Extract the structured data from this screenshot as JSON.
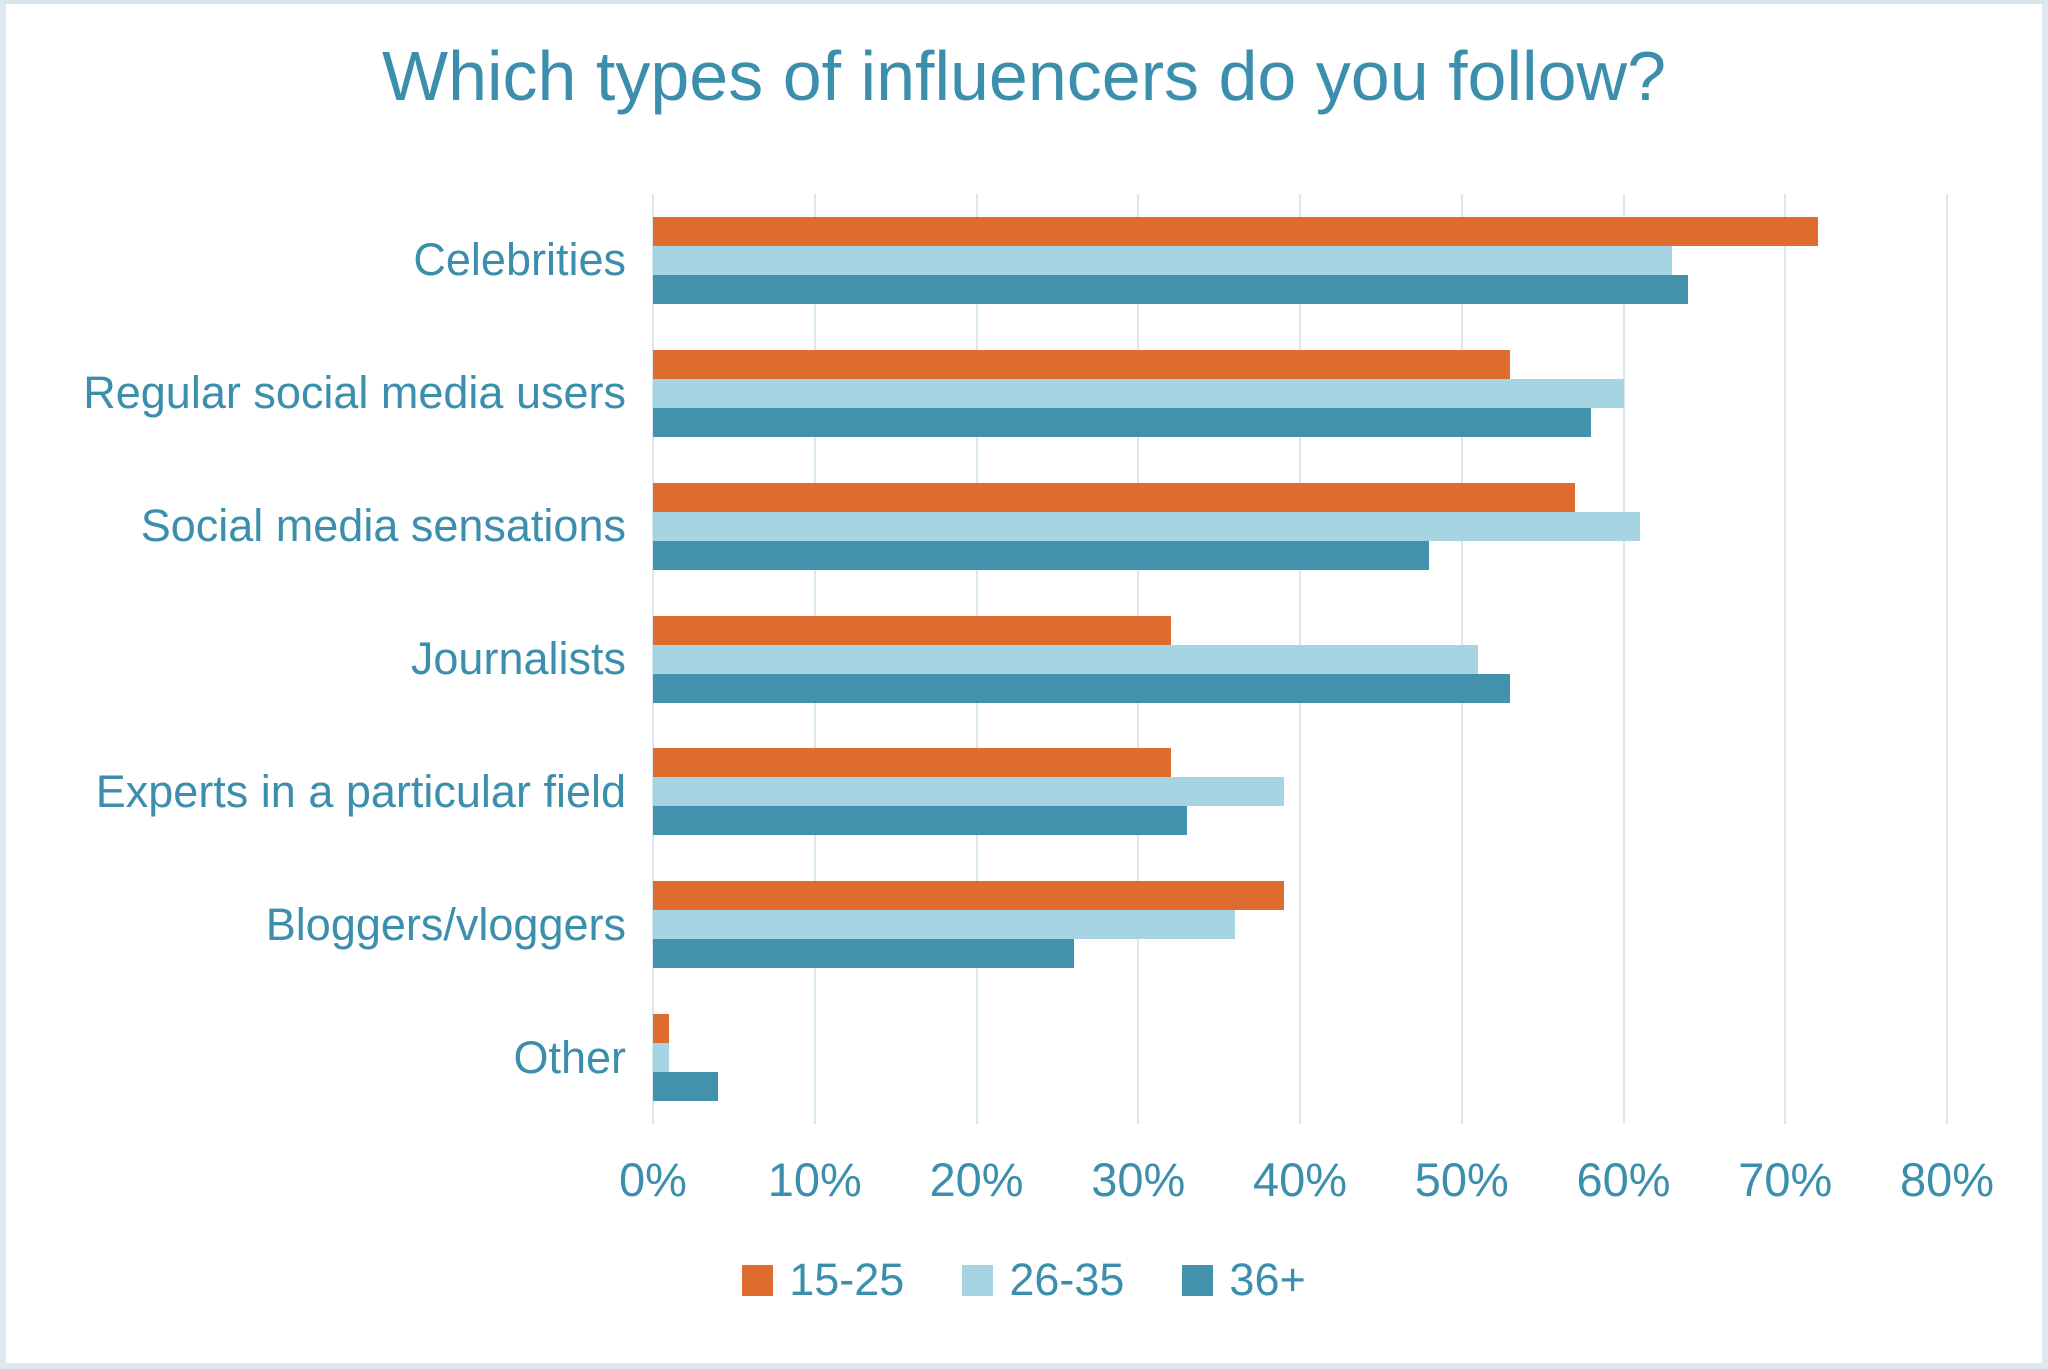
{
  "chart_data": {
    "type": "bar",
    "orientation": "horizontal",
    "title": "Which types of influencers do you follow?",
    "categories": [
      "Celebrities",
      "Regular social media users",
      "Social media sensations",
      "Journalists",
      "Experts in a particular field",
      "Bloggers/vloggers",
      "Other"
    ],
    "series": [
      {
        "name": "15-25",
        "color": "#DD6C2E",
        "values": [
          72,
          53,
          57,
          32,
          32,
          39,
          1
        ]
      },
      {
        "name": "26-35",
        "color": "#A6D4E2",
        "values": [
          63,
          60,
          61,
          51,
          39,
          36,
          1
        ]
      },
      {
        "name": "36+",
        "color": "#4292AE",
        "values": [
          64,
          58,
          48,
          53,
          33,
          26,
          4
        ]
      }
    ],
    "x_axis": {
      "min": 0,
      "max": 80,
      "tick_step": 10,
      "tick_labels": [
        "0%",
        "10%",
        "20%",
        "30%",
        "40%",
        "50%",
        "60%",
        "70%",
        "80%"
      ]
    },
    "grid": "vertical",
    "legend_position": "bottom",
    "text_color": "#3B8FAC",
    "gridline_color": "#D8E7F0",
    "background_color": "#FFFFFF"
  }
}
